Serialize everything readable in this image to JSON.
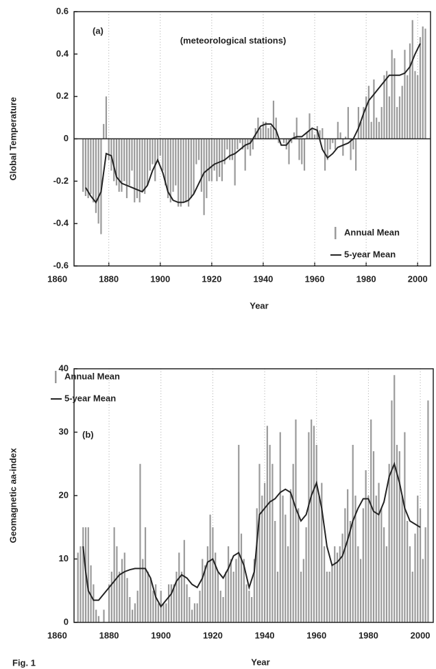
{
  "chart_data": [
    {
      "type": "bar",
      "annotations": [
        "(a)",
        "(meteorological stations)"
      ],
      "x_label": "Year",
      "y_label": "Global Temperature",
      "x": [
        1870,
        1871,
        1872,
        1873,
        1874,
        1875,
        1876,
        1877,
        1878,
        1879,
        1880,
        1881,
        1882,
        1883,
        1884,
        1885,
        1886,
        1887,
        1888,
        1889,
        1890,
        1891,
        1892,
        1893,
        1894,
        1895,
        1896,
        1897,
        1898,
        1899,
        1900,
        1901,
        1902,
        1903,
        1904,
        1905,
        1906,
        1907,
        1908,
        1909,
        1910,
        1911,
        1912,
        1913,
        1914,
        1915,
        1916,
        1917,
        1918,
        1919,
        1920,
        1921,
        1922,
        1923,
        1924,
        1925,
        1926,
        1927,
        1928,
        1929,
        1930,
        1931,
        1932,
        1933,
        1934,
        1935,
        1936,
        1937,
        1938,
        1939,
        1940,
        1941,
        1942,
        1943,
        1944,
        1945,
        1946,
        1947,
        1948,
        1949,
        1950,
        1951,
        1952,
        1953,
        1954,
        1955,
        1956,
        1957,
        1958,
        1959,
        1960,
        1961,
        1962,
        1963,
        1964,
        1965,
        1966,
        1967,
        1968,
        1969,
        1970,
        1971,
        1972,
        1973,
        1974,
        1975,
        1976,
        1977,
        1978,
        1979,
        1980,
        1981,
        1982,
        1983,
        1984,
        1985,
        1986,
        1987,
        1988,
        1989,
        1990,
        1991,
        1992,
        1993,
        1994,
        1995,
        1996,
        1997,
        1998,
        1999,
        2000,
        2001,
        2002,
        2003
      ],
      "series": [
        {
          "name": "Annual Mean",
          "type": "bar",
          "color": "#9a9a9a",
          "values": [
            -0.25,
            -0.27,
            -0.28,
            -0.26,
            -0.3,
            -0.35,
            -0.4,
            -0.45,
            0.07,
            0.2,
            -0.1,
            -0.15,
            -0.2,
            -0.22,
            -0.25,
            -0.25,
            -0.2,
            -0.28,
            -0.22,
            -0.15,
            -0.3,
            -0.28,
            -0.3,
            -0.25,
            -0.26,
            -0.22,
            -0.15,
            -0.12,
            -0.2,
            -0.1,
            -0.08,
            -0.15,
            -0.22,
            -0.28,
            -0.3,
            -0.25,
            -0.22,
            -0.32,
            -0.32,
            -0.3,
            -0.3,
            -0.32,
            -0.28,
            -0.26,
            -0.12,
            -0.1,
            -0.25,
            -0.36,
            -0.28,
            -0.2,
            -0.2,
            -0.15,
            -0.2,
            -0.18,
            -0.2,
            -0.12,
            -0.05,
            -0.1,
            -0.1,
            -0.22,
            -0.05,
            -0.02,
            -0.05,
            -0.15,
            -0.05,
            -0.08,
            -0.05,
            0.05,
            0.1,
            0.05,
            0.08,
            0.08,
            0.05,
            0.06,
            0.18,
            0.1,
            -0.02,
            0,
            -0.02,
            -0.05,
            -0.12,
            -0.02,
            0.03,
            0.1,
            -0.1,
            -0.12,
            -0.15,
            0.03,
            0.12,
            0.05,
            0.02,
            0.06,
            0.04,
            0.05,
            -0.15,
            -0.1,
            -0.05,
            -0.02,
            -0.05,
            0.08,
            0.03,
            -0.08,
            0.01,
            0.15,
            -0.1,
            -0.05,
            -0.15,
            0.15,
            0.08,
            0.15,
            0.2,
            0.25,
            0.08,
            0.28,
            0.1,
            0.08,
            0.15,
            0.3,
            0.32,
            0.2,
            0.42,
            0.38,
            0.15,
            0.2,
            0.25,
            0.42,
            0.3,
            0.45,
            0.56,
            0.32,
            0.3,
            0.48,
            0.53,
            0.52
          ]
        },
        {
          "name": "5-year Mean",
          "type": "line",
          "color": "#222222",
          "x": [
            1871,
            1873,
            1875,
            1877,
            1879,
            1881,
            1883,
            1885,
            1887,
            1889,
            1891,
            1893,
            1895,
            1897,
            1899,
            1901,
            1903,
            1905,
            1907,
            1909,
            1911,
            1913,
            1915,
            1917,
            1919,
            1921,
            1923,
            1925,
            1927,
            1929,
            1931,
            1933,
            1935,
            1937,
            1939,
            1941,
            1943,
            1945,
            1947,
            1949,
            1951,
            1953,
            1955,
            1957,
            1959,
            1961,
            1963,
            1965,
            1967,
            1969,
            1971,
            1973,
            1975,
            1977,
            1979,
            1981,
            1983,
            1985,
            1987,
            1989,
            1991,
            1993,
            1995,
            1997,
            1999,
            2001
          ],
          "values": [
            -0.23,
            -0.27,
            -0.3,
            -0.25,
            -0.07,
            -0.08,
            -0.18,
            -0.21,
            -0.22,
            -0.23,
            -0.24,
            -0.25,
            -0.22,
            -0.15,
            -0.1,
            -0.16,
            -0.25,
            -0.29,
            -0.3,
            -0.3,
            -0.29,
            -0.26,
            -0.21,
            -0.16,
            -0.14,
            -0.12,
            -0.11,
            -0.1,
            -0.08,
            -0.07,
            -0.05,
            -0.03,
            -0.02,
            0.02,
            0.06,
            0.07,
            0.07,
            0.04,
            -0.03,
            -0.03,
            0,
            0.01,
            0.01,
            0.03,
            0.05,
            0.04,
            -0.05,
            -0.09,
            -0.07,
            -0.04,
            -0.03,
            -0.02,
            0,
            0.05,
            0.12,
            0.18,
            0.21,
            0.24,
            0.27,
            0.3,
            0.3,
            0.3,
            0.31,
            0.34,
            0.4,
            0.45
          ]
        }
      ],
      "xlim": [
        1866.5,
        2005
      ],
      "xticks": [
        1860,
        1880,
        1900,
        1920,
        1940,
        1960,
        1980,
        2000
      ],
      "ylim": [
        -0.6,
        0.6
      ],
      "yticks": [
        0.6,
        0.4,
        0.2,
        0,
        -0.2,
        -0.4,
        -0.6
      ],
      "grid": "x",
      "legend": "lower right"
    },
    {
      "type": "bar",
      "annotations": [
        "(b)",
        "Fig. 1"
      ],
      "x_label": "Year",
      "y_label": "Geomagnetic aa-index",
      "x": [
        1868,
        1869,
        1870,
        1871,
        1872,
        1873,
        1874,
        1875,
        1876,
        1877,
        1878,
        1879,
        1880,
        1881,
        1882,
        1883,
        1884,
        1885,
        1886,
        1887,
        1888,
        1889,
        1890,
        1891,
        1892,
        1893,
        1894,
        1895,
        1896,
        1897,
        1898,
        1899,
        1900,
        1901,
        1902,
        1903,
        1904,
        1905,
        1906,
        1907,
        1908,
        1909,
        1910,
        1911,
        1912,
        1913,
        1914,
        1915,
        1916,
        1917,
        1918,
        1919,
        1920,
        1921,
        1922,
        1923,
        1924,
        1925,
        1926,
        1927,
        1928,
        1929,
        1930,
        1931,
        1932,
        1933,
        1934,
        1935,
        1936,
        1937,
        1938,
        1939,
        1940,
        1941,
        1942,
        1943,
        1944,
        1945,
        1946,
        1947,
        1948,
        1949,
        1950,
        1951,
        1952,
        1953,
        1954,
        1955,
        1956,
        1957,
        1958,
        1959,
        1960,
        1961,
        1962,
        1963,
        1964,
        1965,
        1966,
        1967,
        1968,
        1969,
        1970,
        1971,
        1972,
        1973,
        1974,
        1975,
        1976,
        1977,
        1978,
        1979,
        1980,
        1981,
        1982,
        1983,
        1984,
        1985,
        1986,
        1987,
        1988,
        1989,
        1990,
        1991,
        1992,
        1993,
        1994,
        1995,
        1996,
        1997,
        1998,
        1999,
        2000,
        2001,
        2002,
        2003
      ],
      "series": [
        {
          "name": "Annual Mean",
          "type": "bar",
          "color": "#9a9a9a",
          "values": [
            11,
            12,
            15,
            15,
            15,
            9,
            6,
            2,
            1,
            0,
            2,
            0,
            6,
            8,
            15,
            12,
            8,
            10,
            11,
            7,
            4,
            2,
            3,
            5,
            25,
            10,
            15,
            8,
            7,
            5,
            6,
            3,
            5,
            3,
            3,
            6,
            6,
            6,
            8,
            11,
            8,
            13,
            6,
            4,
            2,
            3,
            3,
            5,
            10,
            9,
            12,
            17,
            15,
            11,
            8,
            5,
            4,
            8,
            12,
            10,
            8,
            10,
            28,
            14,
            10,
            6,
            5,
            4,
            10,
            18,
            25,
            20,
            22,
            31,
            28,
            25,
            16,
            8,
            30,
            20,
            17,
            12,
            21,
            25,
            32,
            18,
            8,
            10,
            15,
            30,
            32,
            31,
            28,
            20,
            22,
            12,
            8,
            8,
            9,
            12,
            11,
            12,
            14,
            18,
            21,
            16,
            28,
            20,
            12,
            10,
            18,
            24,
            20,
            32,
            27,
            20,
            22,
            18,
            15,
            12,
            25,
            35,
            39,
            28,
            27,
            20,
            30,
            16,
            12,
            8,
            14,
            20,
            18,
            10,
            15,
            35
          ]
        },
        {
          "name": "5-year Mean",
          "type": "line",
          "color": "#222222",
          "x": [
            1870,
            1871,
            1872,
            1874,
            1876,
            1878,
            1880,
            1882,
            1884,
            1886,
            1888,
            1890,
            1892,
            1894,
            1896,
            1898,
            1900,
            1902,
            1904,
            1906,
            1908,
            1910,
            1912,
            1914,
            1916,
            1918,
            1920,
            1922,
            1924,
            1926,
            1928,
            1930,
            1932,
            1934,
            1936,
            1938,
            1940,
            1942,
            1944,
            1946,
            1948,
            1950,
            1952,
            1954,
            1956,
            1958,
            1960,
            1962,
            1964,
            1966,
            1968,
            1970,
            1972,
            1974,
            1976,
            1978,
            1980,
            1982,
            1984,
            1986,
            1988,
            1990,
            1992,
            1994,
            1996,
            1998,
            2000
          ],
          "values": [
            12,
            8,
            5,
            3.5,
            3.5,
            4.5,
            5.5,
            6.5,
            7.5,
            8,
            8.3,
            8.5,
            8.5,
            8.5,
            7,
            4,
            2.5,
            3.5,
            4.5,
            6.5,
            7.5,
            7,
            6,
            5.5,
            7,
            9.5,
            10,
            8,
            7,
            8.5,
            10.5,
            11,
            9,
            5.5,
            8,
            17,
            18,
            19,
            19.5,
            20.5,
            21,
            20.5,
            18,
            16,
            17,
            20,
            22,
            18,
            12,
            9,
            9.5,
            10.5,
            13,
            16,
            18,
            19.5,
            19.5,
            17.5,
            17,
            19,
            23,
            25,
            22,
            18,
            16,
            15.5,
            15
          ]
        }
      ],
      "xlim": [
        1866.5,
        2005
      ],
      "xticks": [
        1860,
        1880,
        1900,
        1920,
        1940,
        1960,
        1980,
        2000
      ],
      "ylim": [
        0,
        40
      ],
      "yticks": [
        0,
        10,
        20,
        30,
        40
      ],
      "grid": "x",
      "legend": "upper left"
    }
  ]
}
